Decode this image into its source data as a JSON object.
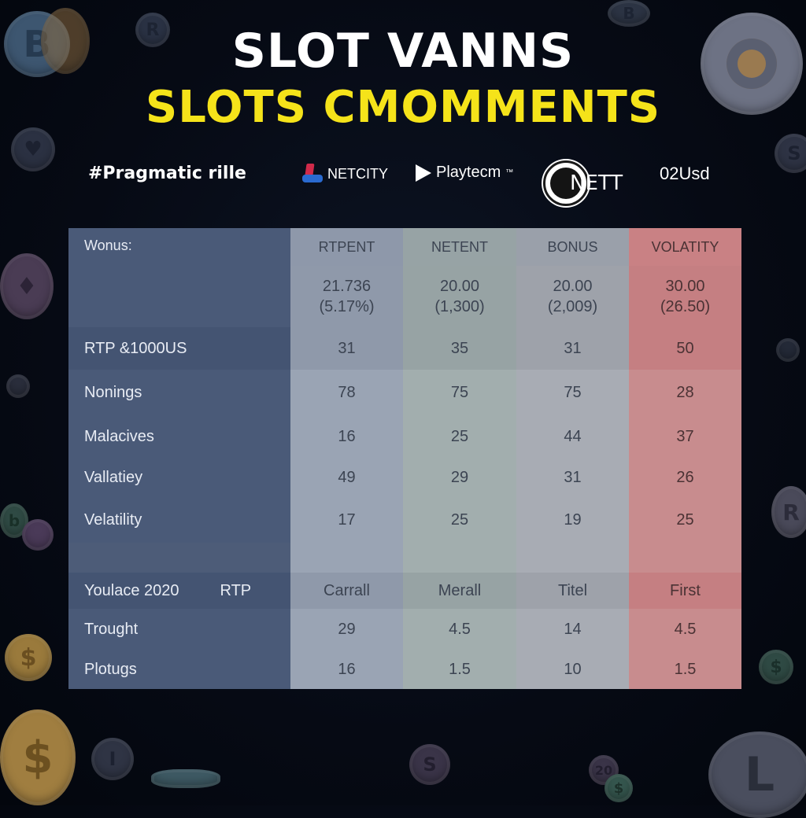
{
  "title": {
    "line1": "SLOT VANNS",
    "line2": "SLOTS CMOMMENTS"
  },
  "providers": [
    {
      "name": "#Pragmatic rille"
    },
    {
      "name": "NETCITY",
      "icon": "playstation-logo-icon"
    },
    {
      "name": "Playtecm",
      "superscript": "™",
      "icon": "play-arrow-icon"
    },
    {
      "name": "NETT",
      "icon": "nett-badge-icon"
    },
    {
      "name": "02Usd"
    }
  ],
  "table": {
    "corner_label": "Wonus:",
    "columns": [
      "RTPENT",
      "NETENT",
      "BONUS",
      "VOLATITY"
    ],
    "summary": [
      {
        "value": "21.736",
        "sub": "(5.17%)"
      },
      {
        "value": "20.00",
        "sub": "(1,300)"
      },
      {
        "value": "20.00",
        "sub": "(2,009)"
      },
      {
        "value": "30.00",
        "sub": "(26.50)"
      }
    ],
    "rows": [
      {
        "label": "RTP &1000US",
        "values": [
          "31",
          "35",
          "31",
          "50"
        ]
      },
      {
        "label": "Nonings",
        "values": [
          "78",
          "75",
          "75",
          "28"
        ]
      },
      {
        "label": "Malacives",
        "values": [
          "16",
          "25",
          "44",
          "37"
        ]
      },
      {
        "label": "Vallatiey",
        "values": [
          "49",
          "29",
          "31",
          "26"
        ]
      },
      {
        "label": "Velatility",
        "values": [
          "17",
          "25",
          "19",
          "25"
        ]
      }
    ],
    "section2": {
      "label": "Youlace 2020",
      "sublabel": "RTP",
      "values": [
        "Carrall",
        "Merall",
        "Titel",
        "First"
      ]
    },
    "rows2": [
      {
        "label": "Trought",
        "values": [
          "29",
          "4.5",
          "14",
          "4.5"
        ]
      },
      {
        "label": "Plotugs",
        "values": [
          "16",
          "1.5",
          "10",
          "1.5"
        ]
      }
    ]
  },
  "colors": {
    "background": "#060a14",
    "title_primary": "#ffffff",
    "title_accent": "#f5e31a",
    "label_column": "#4a5a78",
    "highlight_column": "#c88c8e"
  }
}
